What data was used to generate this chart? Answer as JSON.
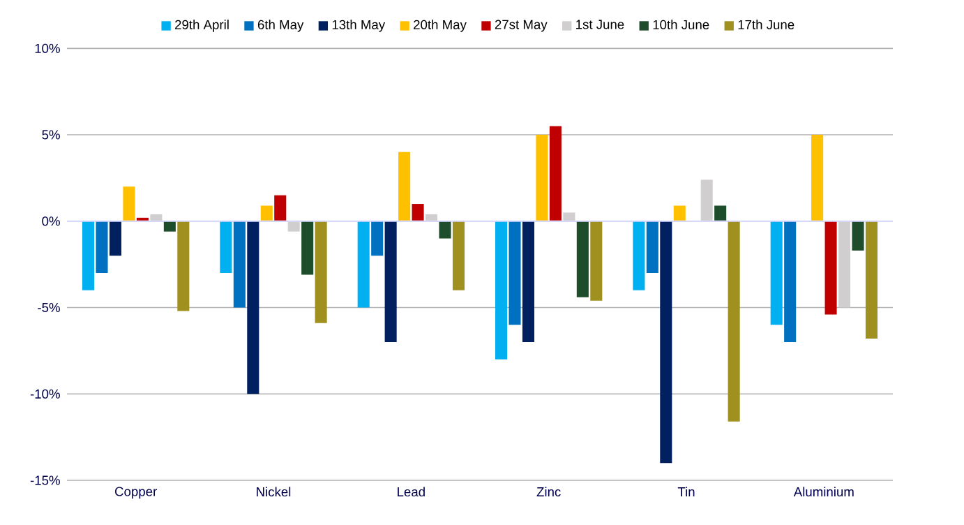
{
  "chart_data": {
    "type": "bar",
    "categories": [
      "Copper",
      "Nickel",
      "Lead",
      "Zinc",
      "Tin",
      "Aluminium"
    ],
    "series": [
      {
        "name": "29th April",
        "color": "#00b0f0",
        "values": [
          -4,
          -3,
          -5,
          -8,
          -4,
          -6
        ]
      },
      {
        "name": "6th May",
        "color": "#0070c0",
        "values": [
          -3,
          -5,
          -2,
          -6,
          -3,
          -7
        ]
      },
      {
        "name": "13th May",
        "color": "#002060",
        "values": [
          -2,
          -10,
          -7,
          -7,
          -14,
          null
        ]
      },
      {
        "name": "20th May",
        "color": "#ffc000",
        "values": [
          2,
          0.9,
          4,
          5,
          0.9,
          5
        ]
      },
      {
        "name": "27st May",
        "color": "#c00000",
        "values": [
          0.2,
          1.5,
          1,
          5.5,
          null,
          -5.4
        ]
      },
      {
        "name": "1st June",
        "color": "#d0cece",
        "values": [
          0.4,
          -0.6,
          0.4,
          0.5,
          2.4,
          -5
        ]
      },
      {
        "name": "10th June",
        "color": "#1e4d2b",
        "values": [
          -0.6,
          -3.1,
          -1,
          -4.4,
          0.9,
          -1.7
        ]
      },
      {
        "name": "17th June",
        "color": "#a09020",
        "values": [
          -5.2,
          -5.9,
          -4,
          -4.6,
          -11.6,
          -6.8
        ]
      }
    ],
    "ylim": [
      -15,
      10
    ],
    "yticks": [
      {
        "value": -15,
        "label": "-15%"
      },
      {
        "value": -10,
        "label": "-10%"
      },
      {
        "value": -5,
        "label": "-5%"
      },
      {
        "value": 0,
        "label": "0%"
      },
      {
        "value": 5,
        "label": "5%"
      },
      {
        "value": 10,
        "label": "10%"
      }
    ],
    "grid": "y",
    "legend": "top"
  }
}
